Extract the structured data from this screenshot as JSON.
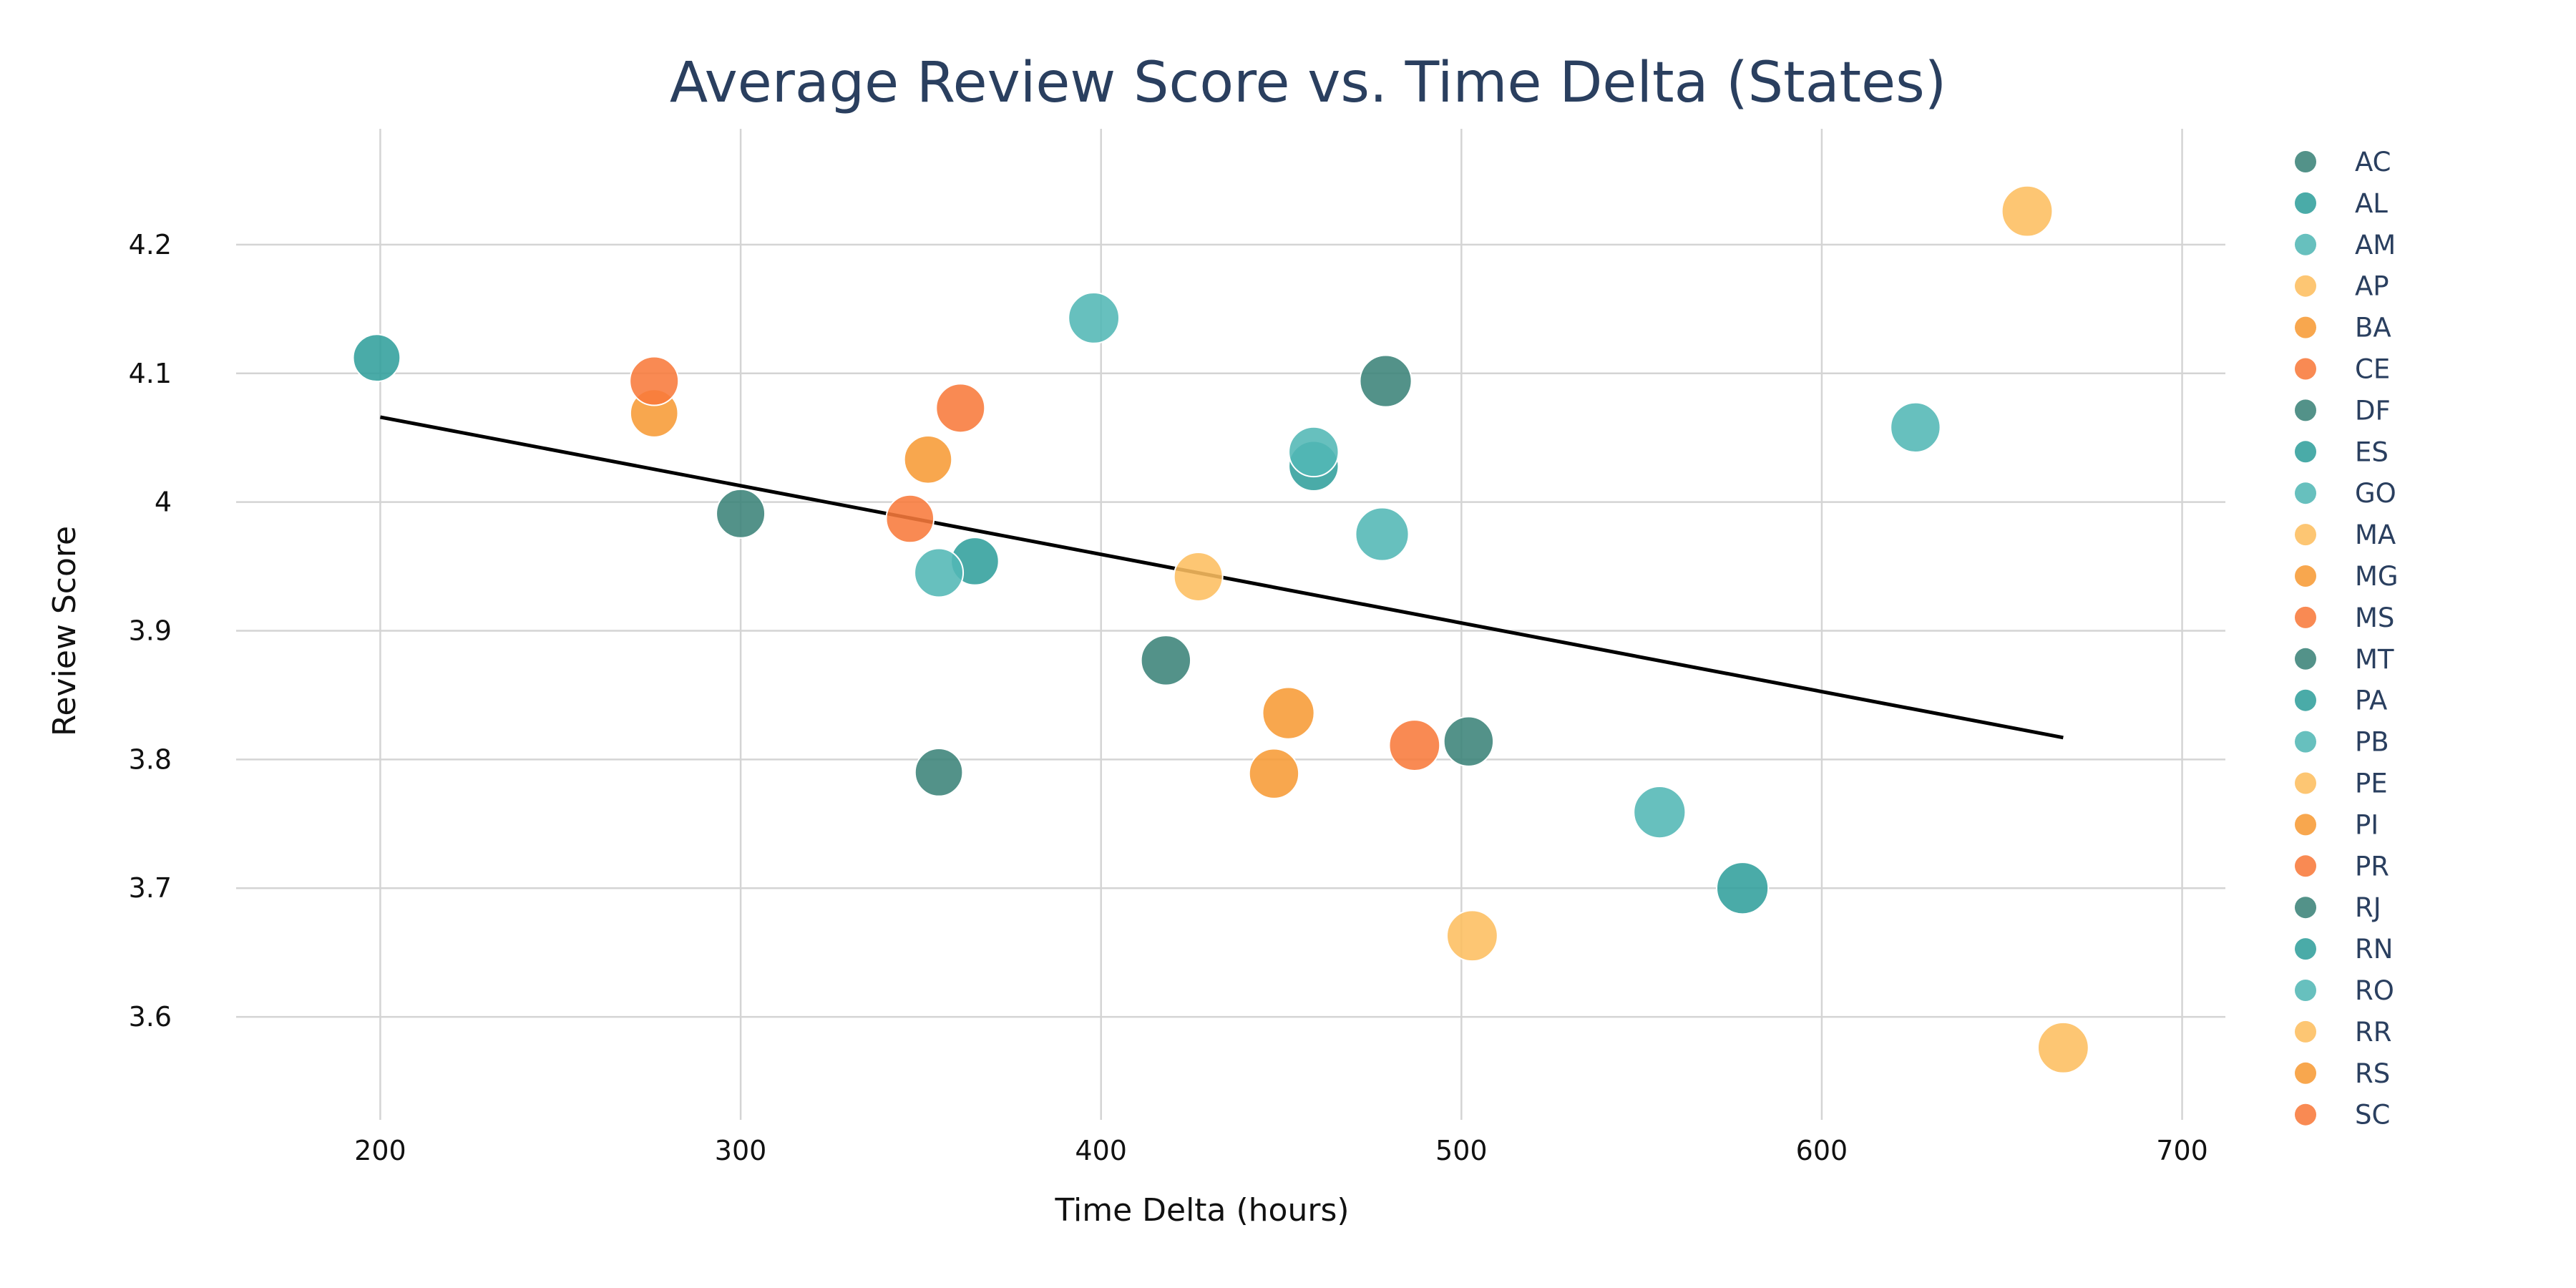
{
  "chart_data": {
    "type": "scatter",
    "title": "Average Review Score vs. Time Delta (States)",
    "xlabel": "Time Delta (hours)",
    "ylabel": "Review Score",
    "xlim": [
      160,
      712
    ],
    "ylim": [
      3.52,
      4.29
    ],
    "xticks": [
      200,
      300,
      400,
      500,
      600,
      700
    ],
    "yticks": [
      3.6,
      3.7,
      3.8,
      3.9,
      4.0,
      4.1,
      4.2
    ],
    "ytick_labels": [
      "3.6",
      "3.7",
      "3.8",
      "3.9",
      "4",
      "4.1",
      "4.2"
    ],
    "grid": true,
    "legend_position": "right",
    "trendline": {
      "x": [
        200,
        667
      ],
      "y": [
        4.066,
        3.817
      ],
      "color": "#000000"
    },
    "series": [
      {
        "name": "AC",
        "color": "#3b8379",
        "x": 418,
        "y": 3.877,
        "size": 0.55
      },
      {
        "name": "AL",
        "color": "#319f9c",
        "x": 578,
        "y": 3.7,
        "size": 0.65
      },
      {
        "name": "AM",
        "color": "#52b7b5",
        "x": 555,
        "y": 3.759,
        "size": 0.65
      },
      {
        "name": "AP",
        "color": "#fdbe60",
        "x": 503,
        "y": 3.663,
        "size": 0.6
      },
      {
        "name": "BA",
        "color": "#f79b35",
        "x": 452,
        "y": 3.836,
        "size": 0.65
      },
      {
        "name": "CE",
        "color": "#f87a3b",
        "x": 487,
        "y": 3.811,
        "size": 0.6
      },
      {
        "name": "DF",
        "color": "#3b8379",
        "x": 355,
        "y": 3.79,
        "size": 0.45
      },
      {
        "name": "ES",
        "color": "#319f9c",
        "x": 365,
        "y": 3.954,
        "size": 0.45
      },
      {
        "name": "GO",
        "color": "#52b7b5",
        "x": 355,
        "y": 3.945,
        "size": 0.5
      },
      {
        "name": "MA",
        "color": "#fdbe60",
        "x": 427,
        "y": 3.942,
        "size": 0.5
      },
      {
        "name": "MG",
        "color": "#f79b35",
        "x": 276,
        "y": 4.069,
        "size": 0.45
      },
      {
        "name": "MS",
        "color": "#f87a3b",
        "x": 347,
        "y": 3.987,
        "size": 0.45
      },
      {
        "name": "MT",
        "color": "#3b8379",
        "x": 479,
        "y": 4.094,
        "size": 0.65
      },
      {
        "name": "PA",
        "color": "#319f9c",
        "x": 459,
        "y": 4.028,
        "size": 0.55
      },
      {
        "name": "PB",
        "color": "#52b7b5",
        "x": 459,
        "y": 4.039,
        "size": 0.55
      },
      {
        "name": "PE",
        "color": "#fdbe60",
        "x": 657,
        "y": 4.226,
        "size": 0.6
      },
      {
        "name": "PI",
        "color": "#f79b35",
        "x": 352,
        "y": 4.033,
        "size": 0.45
      },
      {
        "name": "PR",
        "color": "#f87a3b",
        "x": 361,
        "y": 4.073,
        "size": 0.5
      },
      {
        "name": "RJ",
        "color": "#3b8379",
        "x": 502,
        "y": 3.814,
        "size": 0.55
      },
      {
        "name": "RN",
        "color": "#319f9c",
        "x": 199,
        "y": 4.112,
        "size": 0.42
      },
      {
        "name": "RO",
        "color": "#52b7b5",
        "x": 478,
        "y": 3.975,
        "size": 0.72
      },
      {
        "name": "RR",
        "color": "#fdbe60",
        "x": 667,
        "y": 3.576,
        "size": 0.6
      },
      {
        "name": "RS",
        "color": "#f79b35",
        "x": 448,
        "y": 3.789,
        "size": 0.55
      },
      {
        "name": "SC",
        "color": "#f87a3b",
        "x": 276,
        "y": 4.094,
        "size": 0.5
      },
      {
        "name": "",
        "color": "#3b8379",
        "x": 300,
        "y": 3.991,
        "size": 0.5
      },
      {
        "name": "",
        "color": "#52b7b5",
        "x": 398,
        "y": 4.143,
        "size": 0.6
      },
      {
        "name": "",
        "color": "#52b7b5",
        "x": 626,
        "y": 4.058,
        "size": 0.55
      }
    ]
  }
}
